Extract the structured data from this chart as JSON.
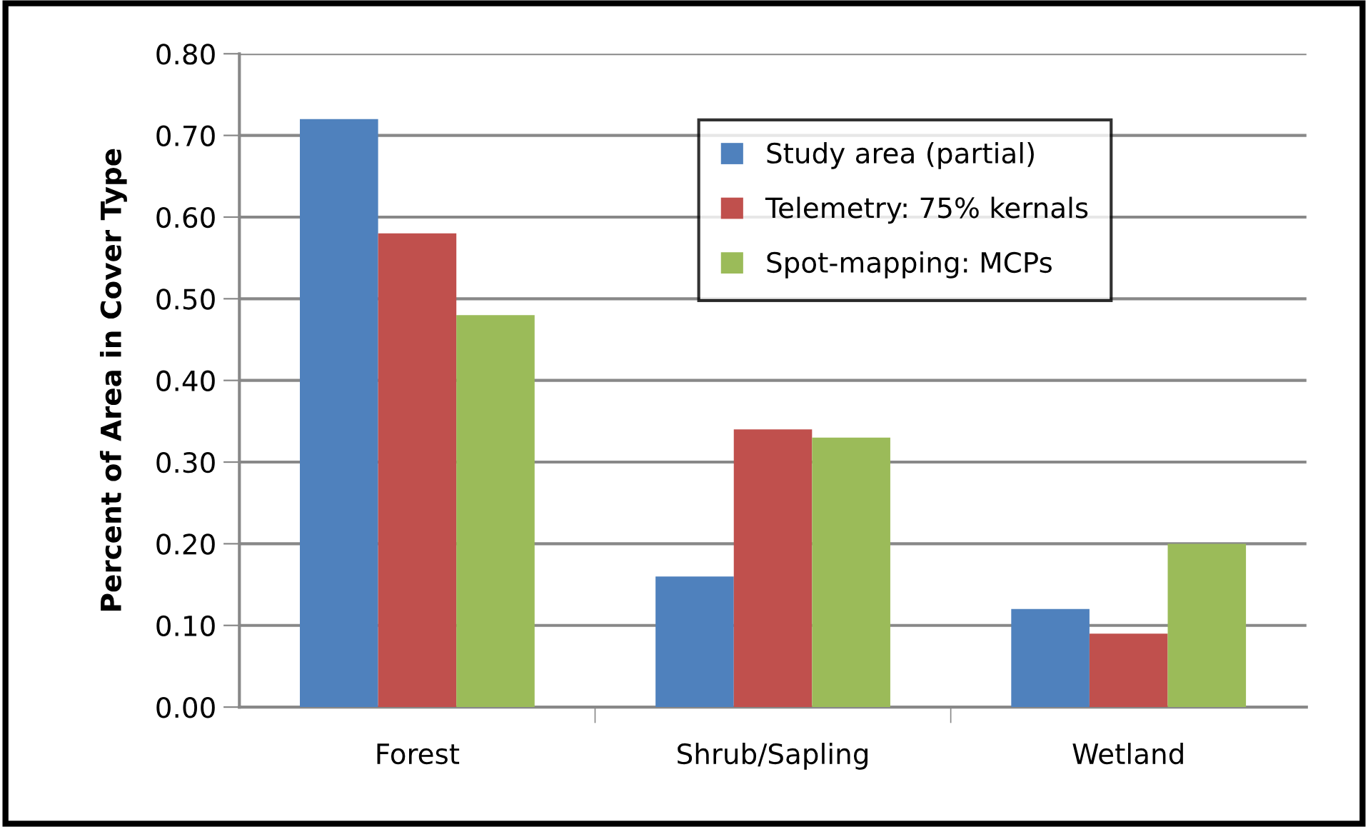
{
  "chart_data": {
    "type": "bar",
    "ylabel": "Percent of Area in Cover Type",
    "categories": [
      "Forest",
      "Shrub/Sapling",
      "Wetland"
    ],
    "series": [
      {
        "name": "Study area (partial)",
        "color": "#4f81bd",
        "values": [
          0.72,
          0.16,
          0.12
        ]
      },
      {
        "name": "Telemetry: 75% kernals",
        "color": "#c0504d",
        "values": [
          0.58,
          0.34,
          0.09
        ]
      },
      {
        "name": "Spot-mapping: MCPs",
        "color": "#9bbb59",
        "values": [
          0.48,
          0.33,
          0.2
        ]
      }
    ],
    "ylim": [
      0,
      0.8
    ],
    "yticks": [
      {
        "value": 0,
        "label": "0.00"
      },
      {
        "value": 0.1,
        "label": "0.10"
      },
      {
        "value": 0.2,
        "label": "0.20"
      },
      {
        "value": 0.3,
        "label": "0.30"
      },
      {
        "value": 0.4,
        "label": "0.40"
      },
      {
        "value": 0.5,
        "label": "0.50"
      },
      {
        "value": 0.6,
        "label": "0.60"
      },
      {
        "value": 0.7,
        "label": "0.70"
      },
      {
        "value": 0.8,
        "label": "0.80"
      }
    ],
    "grid": "y",
    "legend": "top right"
  }
}
